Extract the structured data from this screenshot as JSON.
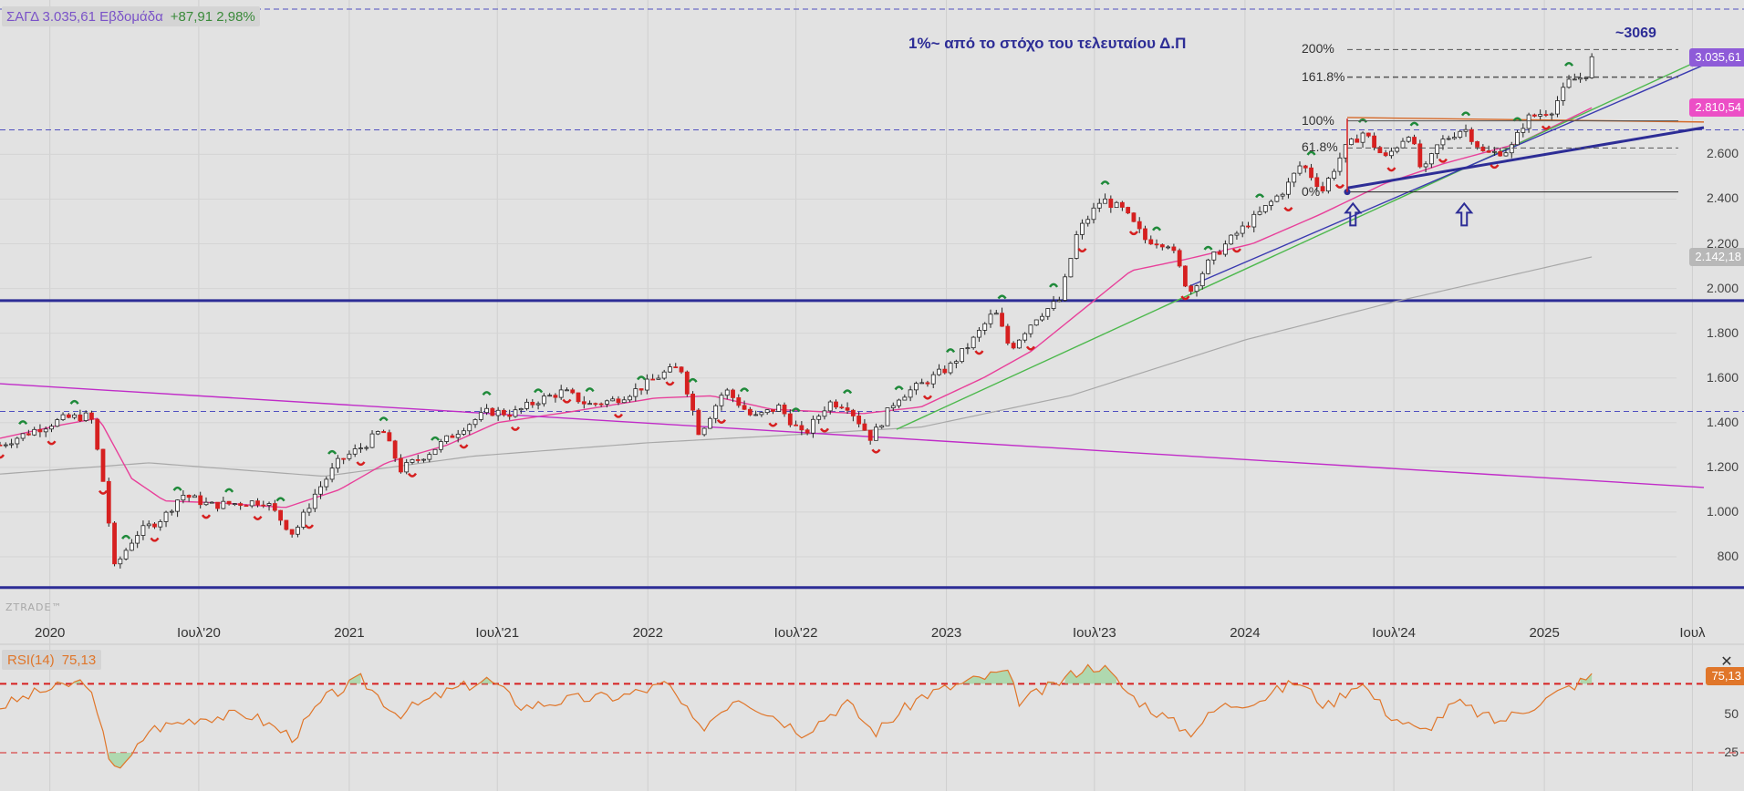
{
  "header": {
    "name_label": "ΣΑΓΔ 3.035,61 Εβδομάδα",
    "change_label": "+87,91 2,98%"
  },
  "watermark": "ZTRADE™",
  "annotations": {
    "title": "1%~ από το στόχο του τελευταίου Δ.Π",
    "target": "~3069"
  },
  "fib_levels": [
    {
      "label": "200%",
      "value": 3069
    },
    {
      "label": "161.8%",
      "value": 2946
    },
    {
      "label": "100%",
      "value": 2750
    },
    {
      "label": "61.8%",
      "value": 2629
    },
    {
      "label": "0%",
      "value": 2432
    }
  ],
  "price_tags": [
    {
      "label": "3.035,61",
      "value": 3035.61,
      "color": "#8e5bd8"
    },
    {
      "label": "2.810,54",
      "value": 2810.54,
      "color": "#ec4fc6"
    },
    {
      "label": "2.142,18",
      "value": 2142.18,
      "color": "#b8b8b8"
    }
  ],
  "rsi": {
    "label": "RSI(14)",
    "value_label": "75,13",
    "tag_label": "75,13",
    "tag_value": 75.13,
    "upper": 70,
    "lower": 25,
    "yticks": [
      {
        "label": "50",
        "value": 50
      },
      {
        "label": "25",
        "value": 25
      }
    ],
    "close_icon": "close-icon"
  },
  "colors": {
    "candle_up": "#ffffff",
    "candle_down": "#d62020",
    "ma_fast": "#e8409a",
    "ma_slow": "#a8a8a8",
    "trend_magenta": "#c02cc8",
    "trend_blue": "#2d2d96",
    "trend_green": "#4cb84c",
    "rsi_line": "#e0762a",
    "rsi_band": "#d62020"
  },
  "chart_data": {
    "type": "line",
    "title": "",
    "xlabel": "",
    "ylabel": "",
    "interval": "weekly",
    "xlim": [
      "2019-11-01",
      "2025-07-15"
    ],
    "ylim": [
      600,
      3250
    ],
    "yticks": [
      {
        "label": "800",
        "value": 800
      },
      {
        "label": "1.000",
        "value": 1000
      },
      {
        "label": "1.200",
        "value": 1200
      },
      {
        "label": "1.400",
        "value": 1400
      },
      {
        "label": "1.600",
        "value": 1600
      },
      {
        "label": "1.800",
        "value": 1800
      },
      {
        "label": "2.000",
        "value": 2000
      },
      {
        "label": "2.200",
        "value": 2200
      },
      {
        "label": "2.400",
        "value": 2400
      },
      {
        "label": "2.600",
        "value": 2600
      }
    ],
    "xticks": [
      {
        "label": "2020",
        "date": "2020-01-01"
      },
      {
        "label": "Ιουλ'20",
        "date": "2020-07-01"
      },
      {
        "label": "2021",
        "date": "2021-01-01"
      },
      {
        "label": "Ιουλ'21",
        "date": "2021-07-01"
      },
      {
        "label": "2022",
        "date": "2022-01-01"
      },
      {
        "label": "Ιουλ'22",
        "date": "2022-07-01"
      },
      {
        "label": "2023",
        "date": "2023-01-01"
      },
      {
        "label": "Ιουλ'23",
        "date": "2023-07-01"
      },
      {
        "label": "2024",
        "date": "2024-01-01"
      },
      {
        "label": "Ιουλ'24",
        "date": "2024-07-01"
      },
      {
        "label": "2025",
        "date": "2025-01-01"
      },
      {
        "label": "Ιουλ",
        "date": "2025-07-01"
      }
    ],
    "price_anchors": [
      [
        "2019-11-01",
        1300
      ],
      [
        "2019-12-15",
        1370
      ],
      [
        "2020-01-20",
        1420
      ],
      [
        "2020-02-20",
        1430
      ],
      [
        "2020-03-08",
        1100
      ],
      [
        "2020-03-20",
        750
      ],
      [
        "2020-04-15",
        900
      ],
      [
        "2020-05-20",
        980
      ],
      [
        "2020-06-10",
        1080
      ],
      [
        "2020-07-15",
        1030
      ],
      [
        "2020-08-20",
        1040
      ],
      [
        "2020-09-20",
        1050
      ],
      [
        "2020-10-25",
        900
      ],
      [
        "2020-11-20",
        1080
      ],
      [
        "2020-12-20",
        1230
      ],
      [
        "2021-01-20",
        1300
      ],
      [
        "2021-02-10",
        1370
      ],
      [
        "2021-03-05",
        1190
      ],
      [
        "2021-04-10",
        1270
      ],
      [
        "2021-05-20",
        1380
      ],
      [
        "2021-06-20",
        1450
      ],
      [
        "2021-07-20",
        1440
      ],
      [
        "2021-08-20",
        1500
      ],
      [
        "2021-09-20",
        1540
      ],
      [
        "2021-10-20",
        1480
      ],
      [
        "2021-11-20",
        1500
      ],
      [
        "2021-12-20",
        1550
      ],
      [
        "2022-01-20",
        1620
      ],
      [
        "2022-02-10",
        1650
      ],
      [
        "2022-03-05",
        1350
      ],
      [
        "2022-04-05",
        1550
      ],
      [
        "2022-05-10",
        1420
      ],
      [
        "2022-06-10",
        1470
      ],
      [
        "2022-07-10",
        1340
      ],
      [
        "2022-08-10",
        1490
      ],
      [
        "2022-09-01",
        1480
      ],
      [
        "2022-10-01",
        1330
      ],
      [
        "2022-11-01",
        1510
      ],
      [
        "2022-12-01",
        1570
      ],
      [
        "2023-01-05",
        1650
      ],
      [
        "2023-02-05",
        1780
      ],
      [
        "2023-03-01",
        1900
      ],
      [
        "2023-03-20",
        1730
      ],
      [
        "2023-04-20",
        1870
      ],
      [
        "2023-05-20",
        1950
      ],
      [
        "2023-06-10",
        2250
      ],
      [
        "2023-07-10",
        2400
      ],
      [
        "2023-08-05",
        2350
      ],
      [
        "2023-09-01",
        2220
      ],
      [
        "2023-10-01",
        2200
      ],
      [
        "2023-10-25",
        1980
      ],
      [
        "2023-11-20",
        2130
      ],
      [
        "2023-12-20",
        2240
      ],
      [
        "2024-01-20",
        2340
      ],
      [
        "2024-02-20",
        2450
      ],
      [
        "2024-03-10",
        2560
      ],
      [
        "2024-04-05",
        2440
      ],
      [
        "2024-05-01",
        2620
      ],
      [
        "2024-05-25",
        2700
      ],
      [
        "2024-06-20",
        2580
      ],
      [
        "2024-07-20",
        2700
      ],
      [
        "2024-08-05",
        2510
      ],
      [
        "2024-08-25",
        2650
      ],
      [
        "2024-09-25",
        2720
      ],
      [
        "2024-10-20",
        2600
      ],
      [
        "2024-11-20",
        2620
      ],
      [
        "2024-12-10",
        2760
      ],
      [
        "2025-01-10",
        2800
      ],
      [
        "2025-02-01",
        2930
      ],
      [
        "2025-02-20",
        2950
      ],
      [
        "2025-03-01",
        3035.61
      ]
    ],
    "series": [
      {
        "values_ref": "price_anchors"
      },
      {
        "ma_anchors": [
          [
            "2019-11-01",
            1330
          ],
          [
            "2020-01-15",
            1390
          ],
          [
            "2020-03-01",
            1420
          ],
          [
            "2020-04-10",
            1150
          ],
          [
            "2020-05-20",
            1050
          ],
          [
            "2020-08-01",
            1040
          ],
          [
            "2020-10-15",
            1020
          ],
          [
            "2020-12-20",
            1100
          ],
          [
            "2021-02-15",
            1220
          ],
          [
            "2021-05-01",
            1300
          ],
          [
            "2021-07-01",
            1400
          ],
          [
            "2021-10-01",
            1450
          ],
          [
            "2022-01-10",
            1510
          ],
          [
            "2022-03-20",
            1520
          ],
          [
            "2022-06-01",
            1460
          ],
          [
            "2022-09-20",
            1440
          ],
          [
            "2022-12-01",
            1470
          ],
          [
            "2023-02-15",
            1600
          ],
          [
            "2023-04-15",
            1720
          ],
          [
            "2023-06-15",
            1900
          ],
          [
            "2023-08-15",
            2080
          ],
          [
            "2023-10-20",
            2130
          ],
          [
            "2024-01-10",
            2200
          ],
          [
            "2024-04-01",
            2330
          ],
          [
            "2024-06-20",
            2470
          ],
          [
            "2024-09-01",
            2560
          ],
          [
            "2024-12-01",
            2650
          ],
          [
            "2025-03-01",
            2810.54
          ]
        ]
      },
      {
        "ma_slow_anchors": [
          [
            "2019-11-01",
            1170
          ],
          [
            "2020-05-01",
            1220
          ],
          [
            "2020-12-01",
            1160
          ],
          [
            "2021-06-01",
            1250
          ],
          [
            "2022-01-01",
            1310
          ],
          [
            "2022-06-01",
            1340
          ],
          [
            "2022-12-01",
            1380
          ],
          [
            "2023-06-01",
            1520
          ],
          [
            "2024-01-01",
            1770
          ],
          [
            "2024-07-01",
            1940
          ],
          [
            "2025-03-01",
            2142.18
          ]
        ]
      }
    ],
    "horizontal_lines": [
      {
        "value": 3250,
        "style": "dashed",
        "color": "#5050c0"
      },
      {
        "value": 2710,
        "style": "dashed",
        "color": "#5050c0"
      },
      {
        "value": 1450,
        "style": "dashed",
        "color": "#5050c0"
      },
      {
        "value": 1946,
        "style": "solid",
        "color": "#2d2d96"
      },
      {
        "value": 662,
        "style": "solid",
        "color": "#2d2d96"
      }
    ],
    "trendlines": [
      {
        "from": [
          "2019-11-01",
          1574
        ],
        "to": [
          "2025-07-15",
          1110
        ],
        "color": "#c02cc8"
      },
      {
        "from": [
          "2022-11-01",
          1370
        ],
        "to": [
          "2025-07-15",
          3030
        ],
        "color": "#4cb84c"
      },
      {
        "from": [
          "2023-10-25",
          2010
        ],
        "to": [
          "2025-07-15",
          3000
        ],
        "color": "#3a3ab0"
      },
      {
        "from": [
          "2024-05-05",
          2450
        ],
        "to": [
          "2025-07-15",
          2720
        ],
        "color": "#2d2d96"
      },
      {
        "from": [
          "2024-05-05",
          2765
        ],
        "to": [
          "2025-07-15",
          2745
        ],
        "color": "#d66a2a"
      }
    ],
    "rsi_anchors": [
      [
        "2019-11-01",
        55
      ],
      [
        "2019-12-20",
        65
      ],
      [
        "2020-02-15",
        72
      ],
      [
        "2020-03-15",
        20
      ],
      [
        "2020-04-01",
        15
      ],
      [
        "2020-05-01",
        40
      ],
      [
        "2020-07-01",
        48
      ],
      [
        "2020-09-01",
        50
      ],
      [
        "2020-10-25",
        35
      ],
      [
        "2020-12-01",
        60
      ],
      [
        "2021-01-15",
        73
      ],
      [
        "2021-03-01",
        50
      ],
      [
        "2021-05-01",
        65
      ],
      [
        "2021-06-20",
        73
      ],
      [
        "2021-08-01",
        55
      ],
      [
        "2021-10-01",
        60
      ],
      [
        "2021-12-01",
        62
      ],
      [
        "2022-01-25",
        70
      ],
      [
        "2022-03-05",
        40
      ],
      [
        "2022-04-20",
        62
      ],
      [
        "2022-06-01",
        50
      ],
      [
        "2022-07-10",
        38
      ],
      [
        "2022-09-01",
        58
      ],
      [
        "2022-10-05",
        38
      ],
      [
        "2022-12-01",
        62
      ],
      [
        "2023-02-01",
        72
      ],
      [
        "2023-03-15",
        78
      ],
      [
        "2023-04-01",
        58
      ],
      [
        "2023-05-15",
        70
      ],
      [
        "2023-06-15",
        80
      ],
      [
        "2023-07-10",
        82
      ],
      [
        "2023-08-15",
        62
      ],
      [
        "2023-10-25",
        38
      ],
      [
        "2023-12-01",
        55
      ],
      [
        "2024-01-20",
        60
      ],
      [
        "2024-03-05",
        72
      ],
      [
        "2024-04-10",
        55
      ],
      [
        "2024-05-20",
        72
      ],
      [
        "2024-06-25",
        50
      ],
      [
        "2024-08-05",
        38
      ],
      [
        "2024-09-15",
        58
      ],
      [
        "2024-11-05",
        45
      ],
      [
        "2024-12-15",
        55
      ],
      [
        "2025-02-01",
        68
      ],
      [
        "2025-03-01",
        75.13
      ]
    ]
  }
}
